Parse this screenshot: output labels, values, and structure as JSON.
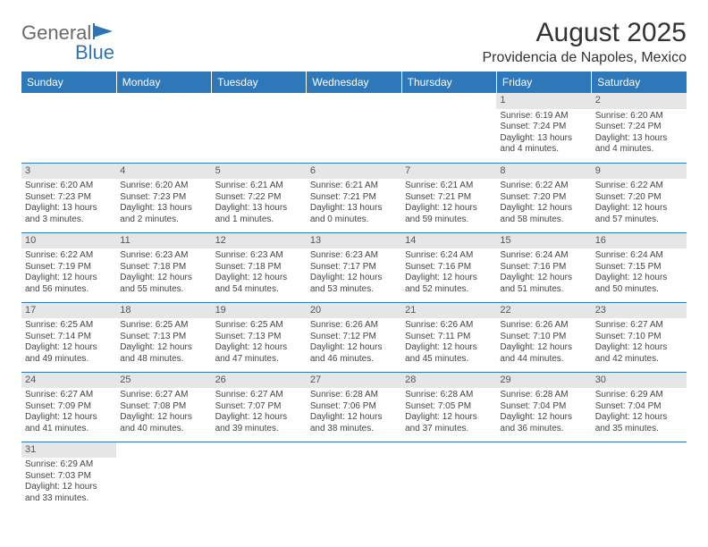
{
  "logo": {
    "general": "General",
    "blue": "Blue"
  },
  "title": "August 2025",
  "location": "Providencia de Napoles, Mexico",
  "colors": {
    "header_bg": "#2e78ba",
    "header_text": "#ffffff",
    "datenum_bg": "#e6e6e6",
    "border": "#2e78ba",
    "text": "#444444"
  },
  "day_names": [
    "Sunday",
    "Monday",
    "Tuesday",
    "Wednesday",
    "Thursday",
    "Friday",
    "Saturday"
  ],
  "weeks": [
    [
      null,
      null,
      null,
      null,
      null,
      {
        "d": "1",
        "r": "6:19 AM",
        "s": "7:24 PM",
        "h": "13",
        "m": "4"
      },
      {
        "d": "2",
        "r": "6:20 AM",
        "s": "7:24 PM",
        "h": "13",
        "m": "4"
      }
    ],
    [
      {
        "d": "3",
        "r": "6:20 AM",
        "s": "7:23 PM",
        "h": "13",
        "m": "3"
      },
      {
        "d": "4",
        "r": "6:20 AM",
        "s": "7:23 PM",
        "h": "13",
        "m": "2"
      },
      {
        "d": "5",
        "r": "6:21 AM",
        "s": "7:22 PM",
        "h": "13",
        "m": "1"
      },
      {
        "d": "6",
        "r": "6:21 AM",
        "s": "7:21 PM",
        "h": "13",
        "m": "0"
      },
      {
        "d": "7",
        "r": "6:21 AM",
        "s": "7:21 PM",
        "h": "12",
        "m": "59"
      },
      {
        "d": "8",
        "r": "6:22 AM",
        "s": "7:20 PM",
        "h": "12",
        "m": "58"
      },
      {
        "d": "9",
        "r": "6:22 AM",
        "s": "7:20 PM",
        "h": "12",
        "m": "57"
      }
    ],
    [
      {
        "d": "10",
        "r": "6:22 AM",
        "s": "7:19 PM",
        "h": "12",
        "m": "56"
      },
      {
        "d": "11",
        "r": "6:23 AM",
        "s": "7:18 PM",
        "h": "12",
        "m": "55"
      },
      {
        "d": "12",
        "r": "6:23 AM",
        "s": "7:18 PM",
        "h": "12",
        "m": "54"
      },
      {
        "d": "13",
        "r": "6:23 AM",
        "s": "7:17 PM",
        "h": "12",
        "m": "53"
      },
      {
        "d": "14",
        "r": "6:24 AM",
        "s": "7:16 PM",
        "h": "12",
        "m": "52"
      },
      {
        "d": "15",
        "r": "6:24 AM",
        "s": "7:16 PM",
        "h": "12",
        "m": "51"
      },
      {
        "d": "16",
        "r": "6:24 AM",
        "s": "7:15 PM",
        "h": "12",
        "m": "50"
      }
    ],
    [
      {
        "d": "17",
        "r": "6:25 AM",
        "s": "7:14 PM",
        "h": "12",
        "m": "49"
      },
      {
        "d": "18",
        "r": "6:25 AM",
        "s": "7:13 PM",
        "h": "12",
        "m": "48"
      },
      {
        "d": "19",
        "r": "6:25 AM",
        "s": "7:13 PM",
        "h": "12",
        "m": "47"
      },
      {
        "d": "20",
        "r": "6:26 AM",
        "s": "7:12 PM",
        "h": "12",
        "m": "46"
      },
      {
        "d": "21",
        "r": "6:26 AM",
        "s": "7:11 PM",
        "h": "12",
        "m": "45"
      },
      {
        "d": "22",
        "r": "6:26 AM",
        "s": "7:10 PM",
        "h": "12",
        "m": "44"
      },
      {
        "d": "23",
        "r": "6:27 AM",
        "s": "7:10 PM",
        "h": "12",
        "m": "42"
      }
    ],
    [
      {
        "d": "24",
        "r": "6:27 AM",
        "s": "7:09 PM",
        "h": "12",
        "m": "41"
      },
      {
        "d": "25",
        "r": "6:27 AM",
        "s": "7:08 PM",
        "h": "12",
        "m": "40"
      },
      {
        "d": "26",
        "r": "6:27 AM",
        "s": "7:07 PM",
        "h": "12",
        "m": "39"
      },
      {
        "d": "27",
        "r": "6:28 AM",
        "s": "7:06 PM",
        "h": "12",
        "m": "38"
      },
      {
        "d": "28",
        "r": "6:28 AM",
        "s": "7:05 PM",
        "h": "12",
        "m": "37"
      },
      {
        "d": "29",
        "r": "6:28 AM",
        "s": "7:04 PM",
        "h": "12",
        "m": "36"
      },
      {
        "d": "30",
        "r": "6:29 AM",
        "s": "7:04 PM",
        "h": "12",
        "m": "35"
      }
    ],
    [
      {
        "d": "31",
        "r": "6:29 AM",
        "s": "7:03 PM",
        "h": "12",
        "m": "33"
      },
      null,
      null,
      null,
      null,
      null,
      null
    ]
  ],
  "labels": {
    "sunrise": "Sunrise: ",
    "sunset": "Sunset: ",
    "daylight": "Daylight: ",
    "hours": " hours",
    "and": "and ",
    "minutes": " minutes."
  }
}
